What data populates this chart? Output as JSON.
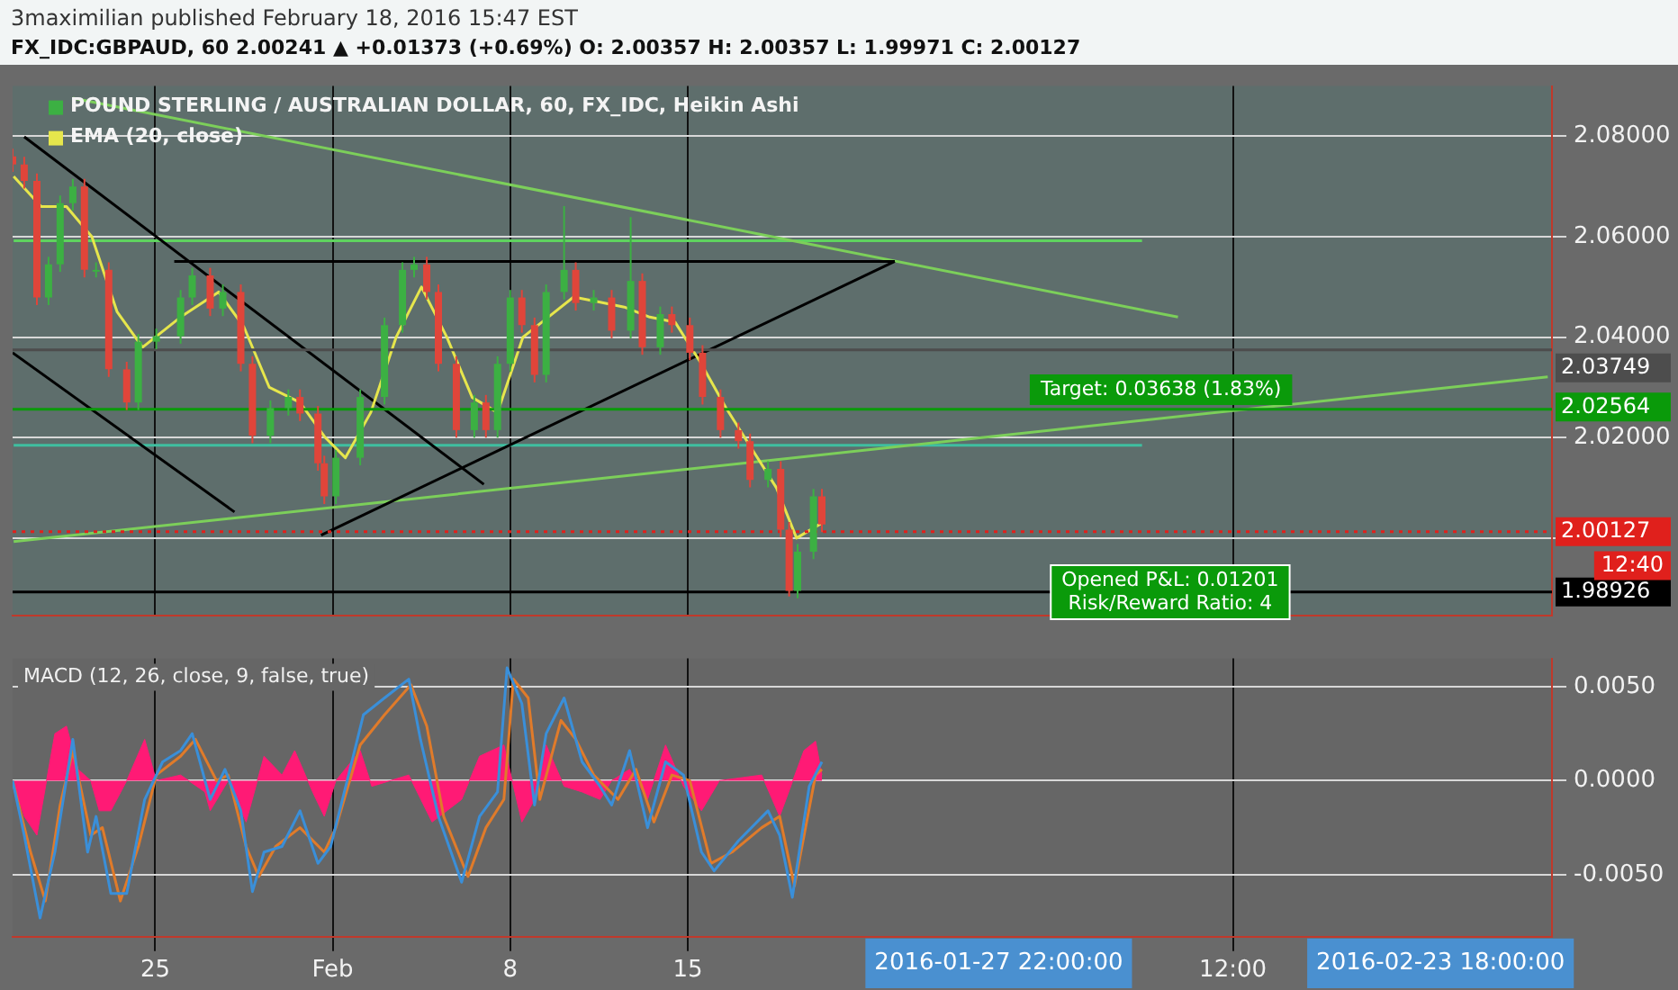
{
  "chart_data": [
    {
      "type": "candlestick",
      "title": "3maximilian published February 18, 2016 15:47 EST",
      "subtitle": "FX_IDC:GBPAUD, 60  2.00241 ▲ +0.01373 (+0.69%)  O: 2.00357  H: 2.00357  L: 1.99971  C: 2.00127",
      "xlim": [
        "2016-01-19T09:00",
        "2016-03-20T02:00"
      ],
      "xticks": [
        {
          "value": "2016-01-25",
          "label": null
        },
        {
          "value": "2016-02-01",
          "label": null
        },
        {
          "value": "2016-02-08",
          "label": null
        },
        {
          "value": "2016-02-15",
          "label": null
        },
        {
          "value": "2016-03-07T12:00",
          "label": null
        }
      ],
      "ylim": [
        1.9845,
        2.09
      ],
      "yticks": [
        {
          "value": 2.0,
          "label": null
        },
        {
          "value": 2.02,
          "label": "2.02000"
        },
        {
          "value": 2.04,
          "label": "2.04000"
        },
        {
          "value": 2.06,
          "label": "2.06000"
        },
        {
          "value": 2.08,
          "label": "2.08000"
        }
      ],
      "tick_labels": "y",
      "grid": true,
      "legend": "top left",
      "series": [
        {
          "name": "POUND STERLING / AUSTRALIAN DOLLAR, 60, FX_IDC, Heikin Ashi",
          "color": "#3cb043",
          "colors": [
            "#e0453a",
            "#e0453a",
            "#e0453a",
            "#3cb043",
            "#3cb043",
            "#3cb043",
            "#e0453a",
            "#3cb043",
            "#e0453a",
            "#e0453a",
            "#3cb043",
            "#3cb043",
            "#3cb043",
            "#3cb043",
            "#e0453a",
            "#3cb043",
            "#e0453a",
            "#e0453a",
            "#3cb043",
            "#3cb043",
            "#e0453a",
            "#e0453a",
            "#e0453a",
            "#3cb043",
            "#3cb043",
            "#3cb043",
            "#3cb043",
            "#3cb043",
            "#e0453a",
            "#e0453a",
            "#e0453a",
            "#3cb043",
            "#e0453a",
            "#3cb043",
            "#3cb043",
            "#e0453a",
            "#e0453a",
            "#3cb043",
            "#3cb043",
            "#e0453a",
            "#3cb043",
            "#e0453a",
            "#3cb043",
            "#e0453a",
            "#3cb043",
            "#e0453a",
            "#e0453a",
            "#e0453a",
            "#e0453a",
            "#e0453a",
            "#e0453a",
            "#3cb043",
            "#e0453a",
            "#e0453a",
            "#3cb043",
            "#3cb043",
            "#e0453a"
          ],
          "x": [
            "2016-01-19T09:00",
            "2016-01-19T20:00",
            "2016-01-20T08:00",
            "2016-01-20T19:00",
            "2016-01-21T06:00",
            "2016-01-21T18:00",
            "2016-01-22T05:00",
            "2016-01-22T16:00",
            "2016-01-23T04:00",
            "2016-01-23T21:00",
            "2016-01-24T08:00",
            "2016-01-25T01:00",
            "2016-01-26T00:00",
            "2016-01-26T11:00",
            "2016-01-27T04:00",
            "2016-01-27T16:00",
            "2016-01-28T09:00",
            "2016-01-28T20:00",
            "2016-01-29T13:00",
            "2016-01-30T06:00",
            "2016-01-30T17:00",
            "2016-01-31T10:00",
            "2016-01-31T16:00",
            "2016-02-01T03:00",
            "2016-02-02T02:00",
            "2016-02-03T01:00",
            "2016-02-03T18:00",
            "2016-02-04T05:00",
            "2016-02-04T17:00",
            "2016-02-05T04:00",
            "2016-02-05T21:00",
            "2016-02-06T14:00",
            "2016-02-07T01:00",
            "2016-02-07T12:00",
            "2016-02-08T00:00",
            "2016-02-08T11:00",
            "2016-02-08T23:00",
            "2016-02-09T10:00",
            "2016-02-10T03:00",
            "2016-02-10T14:00",
            "2016-02-11T07:00",
            "2016-02-12T00:00",
            "2016-02-12T18:00",
            "2016-02-13T05:00",
            "2016-02-13T22:00",
            "2016-02-14T09:00",
            "2016-02-15T02:00",
            "2016-02-15T14:00",
            "2016-02-16T07:00",
            "2016-02-17T00:00",
            "2016-02-17T11:00",
            "2016-02-18T04:00",
            "2016-02-18T16:00",
            "2016-02-19T00:00",
            "2016-02-19T08:00",
            "2016-02-19T23:00",
            "2016-02-20T07:00"
          ],
          "ohlc": [
            [
              2.076,
              2.0775,
              2.0729,
              2.0744
            ],
            [
              2.0744,
              2.0759,
              2.0696,
              2.0711
            ],
            [
              2.0711,
              2.0726,
              2.0464,
              2.0479
            ],
            [
              2.0479,
              2.056,
              2.0464,
              2.0545
            ],
            [
              2.0545,
              2.0682,
              2.053,
              2.0667
            ],
            [
              2.0667,
              2.0715,
              2.0652,
              2.07
            ],
            [
              2.07,
              2.0715,
              2.0519,
              2.0534
            ],
            [
              2.0534,
              2.0549,
              2.0519,
              2.0534
            ],
            [
              2.0534,
              2.0549,
              2.0321,
              2.0336
            ],
            [
              2.0336,
              2.0351,
              2.0255,
              2.027
            ],
            [
              2.027,
              2.0406,
              2.0255,
              2.0391
            ],
            [
              2.0391,
              2.0417,
              2.0376,
              2.0402
            ],
            [
              2.0402,
              2.0494,
              2.0387,
              2.0479
            ],
            [
              2.0479,
              2.0538,
              2.0464,
              2.0523
            ],
            [
              2.0523,
              2.0538,
              2.0442,
              2.0457
            ],
            [
              2.0457,
              2.0505,
              2.0442,
              2.049
            ],
            [
              2.049,
              2.0505,
              2.0332,
              2.0347
            ],
            [
              2.0347,
              2.0362,
              2.0189,
              2.0204
            ],
            [
              2.0204,
              2.0274,
              2.0189,
              2.0259
            ],
            [
              2.0259,
              2.0296,
              2.0244,
              2.0281
            ],
            [
              2.0281,
              2.0296,
              2.0233,
              2.0248
            ],
            [
              2.0248,
              2.0263,
              2.0134,
              2.0149
            ],
            [
              2.0149,
              2.0164,
              2.0068,
              2.0083
            ],
            [
              2.0083,
              2.0175,
              2.0068,
              2.016
            ],
            [
              2.016,
              2.0296,
              2.0145,
              2.0281
            ],
            [
              2.0281,
              2.0439,
              2.0266,
              2.0424
            ],
            [
              2.0424,
              2.0549,
              2.0409,
              2.0534
            ],
            [
              2.0534,
              2.056,
              2.0519,
              2.0545
            ],
            [
              2.0545,
              2.056,
              2.0475,
              2.049
            ],
            [
              2.049,
              2.0505,
              2.0332,
              2.0347
            ],
            [
              2.0347,
              2.0362,
              2.02,
              2.0215
            ],
            [
              2.0215,
              2.0285,
              2.02,
              2.027
            ],
            [
              2.027,
              2.0285,
              2.02,
              2.0215
            ],
            [
              2.0215,
              2.0362,
              2.02,
              2.0347
            ],
            [
              2.0347,
              2.0494,
              2.0332,
              2.0479
            ],
            [
              2.0479,
              2.0494,
              2.0409,
              2.0424
            ],
            [
              2.0424,
              2.0439,
              2.031,
              2.0325
            ],
            [
              2.0325,
              2.0505,
              2.031,
              2.049
            ],
            [
              2.049,
              2.0661,
              2.0475,
              2.0534
            ],
            [
              2.0534,
              2.0549,
              2.0453,
              2.0468
            ],
            [
              2.0468,
              2.0494,
              2.0453,
              2.0479
            ],
            [
              2.0479,
              2.0494,
              2.0398,
              2.0413
            ],
            [
              2.0413,
              2.0639,
              2.0398,
              2.0512
            ],
            [
              2.0512,
              2.0527,
              2.0365,
              2.038
            ],
            [
              2.038,
              2.0461,
              2.0365,
              2.0446
            ],
            [
              2.0446,
              2.0461,
              2.0409,
              2.0424
            ],
            [
              2.0424,
              2.0439,
              2.0354,
              2.0369
            ],
            [
              2.0369,
              2.0384,
              2.0266,
              2.0281
            ],
            [
              2.0281,
              2.0296,
              2.02,
              2.0215
            ],
            [
              2.0215,
              2.023,
              2.0178,
              2.0193
            ],
            [
              2.0193,
              2.0208,
              2.0101,
              2.0116
            ],
            [
              2.0116,
              2.0153,
              2.0101,
              2.0138
            ],
            [
              2.0138,
              2.0153,
              2.0002,
              2.0017
            ],
            [
              2.0017,
              2.0032,
              1.9884,
              1.9895
            ],
            [
              1.9895,
              1.9988,
              1.988,
              1.9973
            ],
            [
              1.9973,
              2.0098,
              1.9958,
              2.0083
            ],
            [
              2.0083,
              2.0098,
              2.0012,
              2.0027
            ]
          ]
        },
        {
          "name": "EMA (20, close)",
          "type": "line",
          "color": "#e6e64c",
          "x": [
            "2016-01-19T10:00",
            "2016-01-20T12:00",
            "2016-01-21T12:00",
            "2016-01-22T12:00",
            "2016-01-23T12:00",
            "2016-01-24T12:00",
            "2016-01-26T00:00",
            "2016-01-27T12:00",
            "2016-01-28T12:00",
            "2016-01-29T12:00",
            "2016-01-30T17:00",
            "2016-01-31T17:00",
            "2016-02-01T12:00",
            "2016-02-02T12:00",
            "2016-02-03T12:00",
            "2016-02-04T12:00",
            "2016-02-05T12:00",
            "2016-02-06T12:00",
            "2016-02-07T12:00",
            "2016-02-08T12:00",
            "2016-02-09T12:00",
            "2016-02-10T12:00",
            "2016-02-11T12:00",
            "2016-02-12T12:00",
            "2016-02-13T12:00",
            "2016-02-14T12:00",
            "2016-02-15T12:00",
            "2016-02-16T12:00",
            "2016-02-17T12:00",
            "2016-02-18T12:00",
            "2016-02-19T07:00",
            "2016-02-20T07:00"
          ],
          "values": [
            2.072,
            2.066,
            2.066,
            2.06,
            2.045,
            2.038,
            2.044,
            2.049,
            2.042,
            2.03,
            2.027,
            2.02,
            2.016,
            2.025,
            2.04,
            2.05,
            2.04,
            2.028,
            2.025,
            2.04,
            2.044,
            2.048,
            2.047,
            2.046,
            2.044,
            2.043,
            2.035,
            2.026,
            2.018,
            2.01,
            2.0,
            2.003
          ]
        },
        {
          "type": "line",
          "color": "#000000",
          "x": [
            "2016-01-19T20:00",
            "2016-02-06T23:00"
          ],
          "values": [
            2.0799,
            2.0107
          ]
        },
        {
          "type": "line",
          "color": "#000000",
          "x": [
            "2016-01-19T09:00",
            "2016-01-28T03:00"
          ],
          "values": [
            2.0369,
            2.0052
          ]
        },
        {
          "type": "line",
          "color": "#000000",
          "x": [
            "2016-01-25T18:00",
            "2016-02-23T04:00"
          ],
          "values": [
            2.0551,
            2.0551
          ]
        },
        {
          "type": "line",
          "color": "#000000",
          "x": [
            "2016-01-31T13:00",
            "2016-02-23T04:00"
          ],
          "values": [
            2.0006,
            2.0551
          ]
        },
        {
          "type": "line",
          "color": "#7ccf5a",
          "x": [
            "2016-01-21T18:00",
            "2016-03-05T08:00"
          ],
          "values": [
            2.0876,
            2.044
          ]
        },
        {
          "type": "line",
          "color": "#7ccf5a",
          "x": [
            "2016-01-19T10:00",
            "2016-03-19T22:00"
          ],
          "values": [
            1.9993,
            2.0321
          ]
        },
        {
          "type": "line",
          "color": "#5fd35f",
          "x": [
            "2016-01-19T10:00",
            "2016-03-03T22:00"
          ],
          "values": [
            2.0592,
            2.0592
          ]
        },
        {
          "type": "line",
          "color": "#3fbfa0",
          "x": [
            "2016-01-19T10:00",
            "2016-03-03T22:00"
          ],
          "values": [
            2.0185,
            2.0185
          ]
        }
      ],
      "ref_lines": [
        {
          "axis": "y",
          "value": 2.03749,
          "label": "2.03749",
          "color": "#4d4d4d"
        },
        {
          "axis": "y",
          "value": 2.02564,
          "label": "2.02564",
          "color": "#0a9a0a"
        },
        {
          "axis": "y",
          "value": 2.00127,
          "label": "2.00127",
          "color": "#e0201c",
          "line_style": "dotted"
        },
        {
          "axis": "y",
          "value": 1.98926,
          "label": "1.98926",
          "color": "#000000"
        }
      ],
      "annotations": [
        "Target: 0.03638 (1.83%)",
        "Opened P&L: 0.01201\nRisk/Reward Ratio: 4",
        "12:40"
      ]
    },
    {
      "type": "line",
      "title": "MACD (12, 26, close, 9, false, true)",
      "xlim": [
        "2016-01-19T09:00",
        "2016-03-20T02:00"
      ],
      "xticks": [
        {
          "value": "2016-01-25",
          "label": "25"
        },
        {
          "value": "2016-02-01",
          "label": "Feb"
        },
        {
          "value": "2016-02-08",
          "label": "8"
        },
        {
          "value": "2016-02-15",
          "label": "15"
        },
        {
          "value": "2016-03-07T12:00",
          "label": "12:00"
        }
      ],
      "ylim": [
        -0.0083,
        0.0065
      ],
      "yticks": [
        {
          "value": -0.005,
          "label": "-0.0050"
        },
        {
          "value": 0,
          "label": "0.0000"
        },
        {
          "value": 0.005,
          "label": "0.0050"
        }
      ],
      "grid": true,
      "series": [
        {
          "type": "area",
          "color": "#ff1a75",
          "x": [
            "2016-01-19T09:00",
            "2016-01-19T20:00",
            "2016-01-20T08:00",
            "2016-01-21T01:00",
            "2016-01-21T12:00",
            "2016-01-21T23:00",
            "2016-01-22T11:00",
            "2016-01-22T19:00",
            "2016-01-23T06:00",
            "2016-01-23T21:00",
            "2016-01-24T14:00",
            "2016-01-25T01:00",
            "2016-01-26T00:00",
            "2016-01-26T23:00",
            "2016-01-27T04:00",
            "2016-01-27T21:00",
            "2016-01-28T14:00",
            "2016-01-29T07:00",
            "2016-01-30T00:00",
            "2016-01-30T12:00",
            "2016-01-31T05:00",
            "2016-01-31T16:00",
            "2016-02-01T03:00",
            "2016-02-02T02:00",
            "2016-02-02T13:00",
            "2016-02-04T00:00",
            "2016-02-04T22:00",
            "2016-02-06T02:00",
            "2016-02-06T19:00",
            "2016-02-07T18:00",
            "2016-02-08T11:00",
            "2016-02-08T23:00",
            "2016-02-09T10:00",
            "2016-02-10T03:00",
            "2016-02-10T20:00",
            "2016-02-11T13:00",
            "2016-02-12T00:00",
            "2016-02-12T17:00",
            "2016-02-13T10:00",
            "2016-02-14T03:00",
            "2016-02-14T20:00",
            "2016-02-15T13:00",
            "2016-02-16T06:00",
            "2016-02-17T22:00",
            "2016-02-18T15:00",
            "2016-02-19T14:00",
            "2016-02-20T01:00",
            "2016-02-20T07:00"
          ],
          "values": [
            0,
            -0.0019,
            -0.0029,
            0.0025,
            0.0029,
            0.0006,
            0,
            -0.0016,
            -0.0016,
            0,
            0.0022,
            0,
            0.0003,
            -0.0006,
            -0.0016,
            0,
            -0.0022,
            0.0013,
            0.0003,
            0.0016,
            -0.0006,
            -0.0019,
            0,
            0.0016,
            -0.0003,
            0.0003,
            -0.0022,
            -0.001,
            0.0013,
            0.0019,
            -0.0022,
            -0.001,
            0.0019,
            -0.0003,
            -0.0006,
            -0.001,
            0,
            0.0006,
            -0.001,
            0.0019,
            -0.0003,
            -0.0016,
            0,
            0.0003,
            -0.0019,
            0.0016,
            0.0021,
            0.0003
          ]
        },
        {
          "color": "#3a8fd9",
          "x": [
            "2016-01-19T09:00",
            "2016-01-19T20:00",
            "2016-01-20T11:00",
            "2016-01-21T01:00",
            "2016-01-21T18:00",
            "2016-01-22T08:00",
            "2016-01-22T16:00",
            "2016-01-23T06:00",
            "2016-01-23T21:00",
            "2016-01-24T14:00",
            "2016-01-25T07:00",
            "2016-01-26T00:00",
            "2016-01-26T11:00",
            "2016-01-27T04:00",
            "2016-01-27T18:00",
            "2016-01-28T09:00",
            "2016-01-28T20:00",
            "2016-01-29T07:00",
            "2016-01-30T00:00",
            "2016-01-30T17:00",
            "2016-01-31T10:00",
            "2016-01-31T22:00",
            "2016-02-01T15:00",
            "2016-02-02T05:00",
            "2016-02-03T01:00",
            "2016-02-04T00:00",
            "2016-02-04T11:00",
            "2016-02-05T04:00",
            "2016-02-06T02:00",
            "2016-02-06T19:00",
            "2016-02-07T12:00",
            "2016-02-07T21:00",
            "2016-02-08T11:00",
            "2016-02-08T23:00",
            "2016-02-09T10:00",
            "2016-02-10T03:00",
            "2016-02-10T20:00",
            "2016-02-11T13:00",
            "2016-02-12T00:00",
            "2016-02-12T17:00",
            "2016-02-13T10:00",
            "2016-02-14T03:00",
            "2016-02-14T20:00",
            "2016-02-15T13:00",
            "2016-02-16T01:00",
            "2016-02-17T00:00",
            "2016-02-18T04:00",
            "2016-02-18T15:00",
            "2016-02-19T03:00",
            "2016-02-19T19:00",
            "2016-02-20T07:00"
          ],
          "values": [
            0,
            -0.0029,
            -0.0073,
            -0.0038,
            0.0022,
            -0.0038,
            -0.0019,
            -0.006,
            -0.006,
            -0.001,
            0.001,
            0.0016,
            0.0025,
            -0.001,
            0.0006,
            -0.0016,
            -0.0059,
            -0.0038,
            -0.0035,
            -0.0016,
            -0.0044,
            -0.0035,
            0.0003,
            0.0035,
            0.0044,
            0.0054,
            0.0022,
            -0.0019,
            -0.0054,
            -0.0019,
            -0.0006,
            0.006,
            0.0041,
            -0.0013,
            0.0025,
            0.0044,
            0.001,
            -0.0003,
            -0.0013,
            0.0016,
            -0.0025,
            0.001,
            0.0003,
            -0.0038,
            -0.0048,
            -0.0032,
            -0.0016,
            -0.0029,
            -0.0062,
            -0.0003,
            0.001
          ]
        },
        {
          "color": "#e07b2a",
          "x": [
            "2016-01-19T09:00",
            "2016-01-20T02:00",
            "2016-01-20T16:00",
            "2016-01-21T06:00",
            "2016-01-21T18:00",
            "2016-01-22T11:00",
            "2016-01-22T22:00",
            "2016-01-23T15:00",
            "2016-01-24T08:00",
            "2016-01-25T01:00",
            "2016-01-26T00:00",
            "2016-01-26T14:00",
            "2016-01-27T10:00",
            "2016-01-27T21:00",
            "2016-01-28T14:00",
            "2016-01-29T02:00",
            "2016-01-29T18:00",
            "2016-01-30T17:00",
            "2016-01-31T16:00",
            "2016-02-01T03:00",
            "2016-02-02T02:00",
            "2016-02-03T01:00",
            "2016-02-04T02:00",
            "2016-02-04T17:00",
            "2016-02-05T09:00",
            "2016-02-06T08:00",
            "2016-02-07T01:00",
            "2016-02-07T18:00",
            "2016-02-08T03:00",
            "2016-02-08T17:00",
            "2016-02-09T04:00",
            "2016-02-10T00:00",
            "2016-02-10T14:00",
            "2016-02-11T07:00",
            "2016-02-12T06:00",
            "2016-02-12T23:00",
            "2016-02-13T16:00",
            "2016-02-14T09:00",
            "2016-02-15T02:00",
            "2016-02-15T22:00",
            "2016-02-16T18:00",
            "2016-02-17T22:00",
            "2016-02-18T15:00",
            "2016-02-19T05:00",
            "2016-02-20T01:00",
            "2016-02-20T07:00"
          ],
          "values": [
            0,
            -0.0038,
            -0.0064,
            -0.0013,
            0.0016,
            -0.0029,
            -0.0025,
            -0.0064,
            -0.0035,
            0.0003,
            0.0013,
            0.0022,
            0,
            0.0003,
            -0.0035,
            -0.0051,
            -0.0035,
            -0.0025,
            -0.0038,
            -0.0025,
            0.0019,
            0.0035,
            0.0051,
            0.0029,
            -0.0019,
            -0.0051,
            -0.0025,
            -0.001,
            0.0054,
            0.0044,
            -0.001,
            0.0032,
            0.0022,
            0.0003,
            -0.001,
            0.0006,
            -0.0022,
            0.0003,
            0,
            -0.0044,
            -0.0038,
            -0.0025,
            -0.0019,
            -0.0056,
            0.0003,
            0.0006
          ]
        }
      ],
      "annotations": [
        "2016-01-27 22:00:00",
        "2016-02-23 18:00:00"
      ]
    }
  ]
}
